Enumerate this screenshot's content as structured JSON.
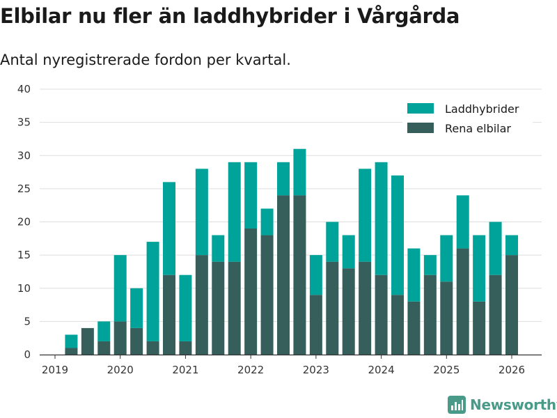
{
  "title": "Elbilar nu fler än laddhybrider i Vårgårda",
  "subtitle": "Antal nyregistrerade fordon per kvartal.",
  "brand": {
    "name": "Newsworthy",
    "icon": "bar-chart-icon"
  },
  "colors": {
    "hybrid": "#00a39a",
    "electric": "#365e5a",
    "grid": "#dddddd",
    "axis": "#333333",
    "brand": "#4a9a8a"
  },
  "chart_data": {
    "type": "bar",
    "stacked": true,
    "yticks": [
      "0",
      "5",
      "10",
      "15",
      "20",
      "25",
      "30",
      "35",
      "40"
    ],
    "ylim": [
      0,
      40
    ],
    "xticks": [
      "2019",
      "2020",
      "2021",
      "2022",
      "2023",
      "2024",
      "2025",
      "2026"
    ],
    "x_start": 2019.0,
    "x_end": 2026.5,
    "categories": [
      "2019 Q2",
      "2019 Q3",
      "2019 Q4",
      "2020 Q1",
      "2020 Q2",
      "2020 Q3",
      "2020 Q4",
      "2021 Q1",
      "2021 Q2",
      "2021 Q3",
      "2021 Q4",
      "2022 Q1",
      "2022 Q2",
      "2022 Q3",
      "2022 Q4",
      "2023 Q1",
      "2023 Q2",
      "2023 Q3",
      "2023 Q4",
      "2024 Q1",
      "2024 Q2",
      "2024 Q3",
      "2024 Q4",
      "2025 Q1",
      "2025 Q2",
      "2025 Q3",
      "2025 Q4",
      "2026 Q1"
    ],
    "x": [
      2019.25,
      2019.5,
      2019.75,
      2020.0,
      2020.25,
      2020.5,
      2020.75,
      2021.0,
      2021.25,
      2021.5,
      2021.75,
      2022.0,
      2022.25,
      2022.5,
      2022.75,
      2023.0,
      2023.25,
      2023.5,
      2023.75,
      2024.0,
      2024.25,
      2024.5,
      2024.75,
      2025.0,
      2025.25,
      2025.5,
      2025.75,
      2026.0
    ],
    "series": [
      {
        "name": "Rena elbilar",
        "values": [
          1,
          4,
          2,
          5,
          4,
          2,
          12,
          2,
          15,
          14,
          14,
          19,
          18,
          24,
          24,
          9,
          14,
          13,
          14,
          12,
          9,
          8,
          12,
          11,
          16,
          8,
          12,
          15
        ]
      },
      {
        "name": "Laddhybrider",
        "values": [
          2,
          0,
          3,
          10,
          6,
          15,
          14,
          10,
          13,
          4,
          15,
          10,
          4,
          5,
          7,
          6,
          6,
          5,
          14,
          17,
          18,
          8,
          3,
          7,
          8,
          10,
          8,
          3
        ]
      }
    ],
    "legend": [
      "Laddhybrider",
      "Rena elbilar"
    ],
    "legend_position": "top-right"
  }
}
